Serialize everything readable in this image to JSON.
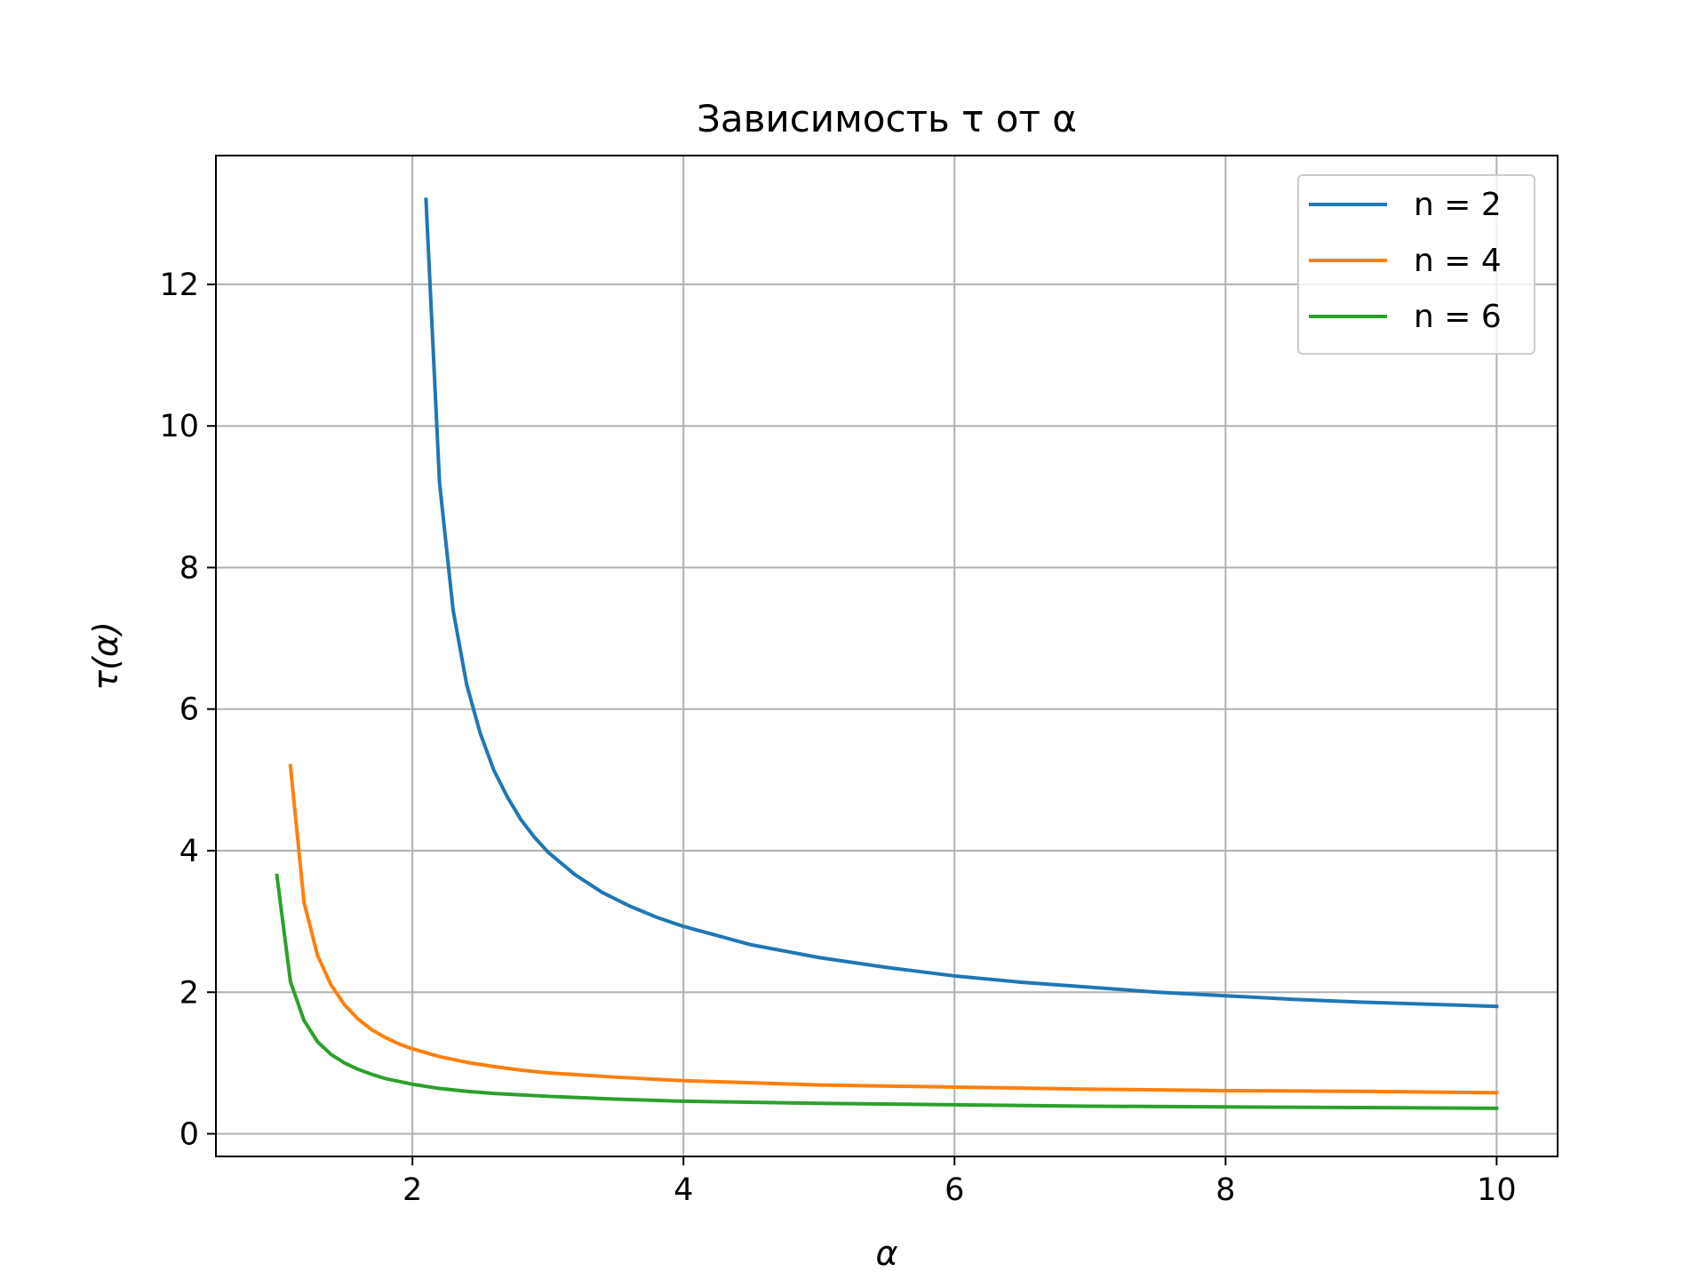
{
  "chart_data": {
    "type": "line",
    "title": "Зависимость τ от α",
    "xlabel": "α",
    "ylabel": "τ(α)",
    "xlim": [
      0.55,
      10.45
    ],
    "ylim": [
      -0.32,
      13.82
    ],
    "xticks": [
      2,
      4,
      6,
      8,
      10
    ],
    "yticks": [
      0,
      2,
      4,
      6,
      8,
      10,
      12
    ],
    "grid": true,
    "legend_position": "top-right",
    "series": [
      {
        "name": "n = 2",
        "color": "#1f77b4",
        "points": [
          [
            2.1,
            13.2
          ],
          [
            2.2,
            9.2
          ],
          [
            2.3,
            7.4
          ],
          [
            2.4,
            6.35
          ],
          [
            2.5,
            5.66
          ],
          [
            2.6,
            5.14
          ],
          [
            2.7,
            4.76
          ],
          [
            2.8,
            4.44
          ],
          [
            2.9,
            4.19
          ],
          [
            3.0,
            3.98
          ],
          [
            3.2,
            3.66
          ],
          [
            3.4,
            3.41
          ],
          [
            3.6,
            3.22
          ],
          [
            3.8,
            3.06
          ],
          [
            4.0,
            2.93
          ],
          [
            4.5,
            2.67
          ],
          [
            5.0,
            2.49
          ],
          [
            5.5,
            2.35
          ],
          [
            6.0,
            2.23
          ],
          [
            6.5,
            2.14
          ],
          [
            7.0,
            2.07
          ],
          [
            7.5,
            2.0
          ],
          [
            8.0,
            1.95
          ],
          [
            8.5,
            1.9
          ],
          [
            9.0,
            1.86
          ],
          [
            9.5,
            1.83
          ],
          [
            10.0,
            1.8
          ]
        ]
      },
      {
        "name": "n = 4",
        "color": "#ff7f0e",
        "points": [
          [
            1.1,
            5.2
          ],
          [
            1.2,
            3.27
          ],
          [
            1.3,
            2.52
          ],
          [
            1.4,
            2.1
          ],
          [
            1.5,
            1.82
          ],
          [
            1.6,
            1.62
          ],
          [
            1.7,
            1.47
          ],
          [
            1.8,
            1.36
          ],
          [
            1.9,
            1.27
          ],
          [
            2.0,
            1.2
          ],
          [
            2.2,
            1.09
          ],
          [
            2.4,
            1.01
          ],
          [
            2.6,
            0.95
          ],
          [
            2.8,
            0.9
          ],
          [
            3.0,
            0.86
          ],
          [
            3.5,
            0.8
          ],
          [
            4.0,
            0.75
          ],
          [
            4.5,
            0.72
          ],
          [
            5.0,
            0.69
          ],
          [
            6.0,
            0.66
          ],
          [
            7.0,
            0.63
          ],
          [
            8.0,
            0.61
          ],
          [
            9.0,
            0.6
          ],
          [
            10.0,
            0.58
          ]
        ]
      },
      {
        "name": "n = 6",
        "color": "#2ca02c",
        "points": [
          [
            1.0,
            3.65
          ],
          [
            1.1,
            2.15
          ],
          [
            1.2,
            1.6
          ],
          [
            1.3,
            1.3
          ],
          [
            1.4,
            1.12
          ],
          [
            1.5,
            1.0
          ],
          [
            1.6,
            0.91
          ],
          [
            1.7,
            0.84
          ],
          [
            1.8,
            0.78
          ],
          [
            1.9,
            0.74
          ],
          [
            2.0,
            0.7
          ],
          [
            2.2,
            0.64
          ],
          [
            2.4,
            0.6
          ],
          [
            2.6,
            0.57
          ],
          [
            2.8,
            0.55
          ],
          [
            3.0,
            0.53
          ],
          [
            3.5,
            0.49
          ],
          [
            4.0,
            0.46
          ],
          [
            5.0,
            0.43
          ],
          [
            6.0,
            0.41
          ],
          [
            7.0,
            0.39
          ],
          [
            8.0,
            0.38
          ],
          [
            9.0,
            0.37
          ],
          [
            10.0,
            0.36
          ]
        ]
      }
    ]
  }
}
